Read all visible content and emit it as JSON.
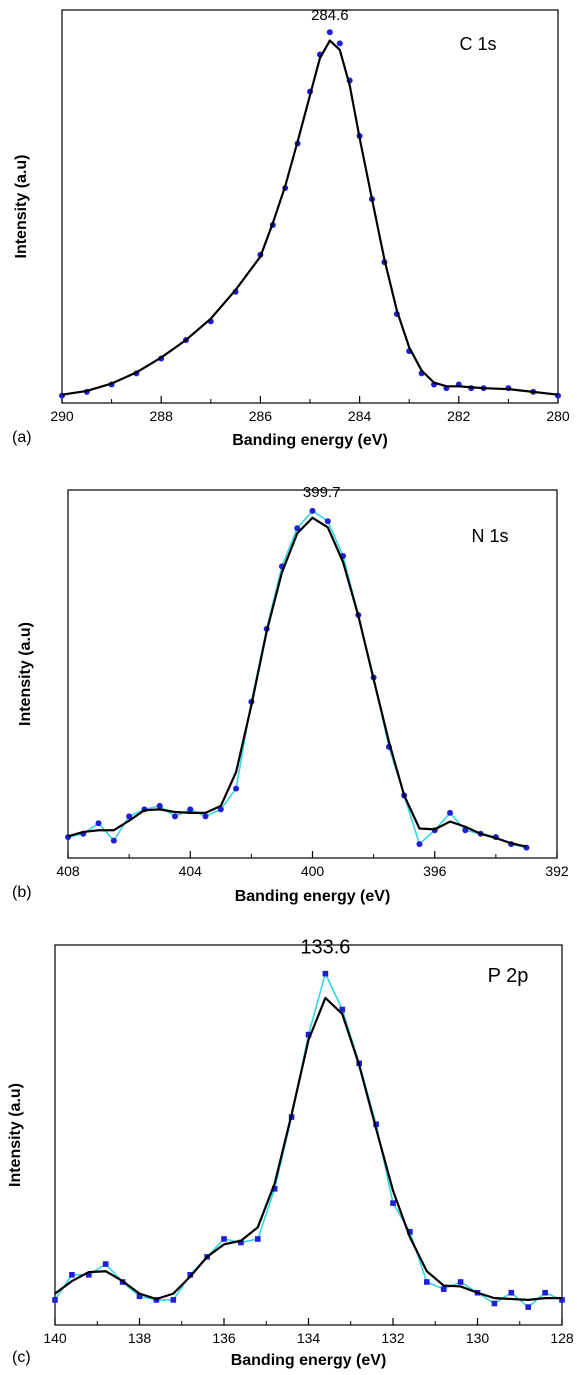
{
  "chart_data": [
    {
      "type": "scatter",
      "panel_tag": "(a)",
      "title": "C 1s",
      "peak_label": "284.6",
      "peak_x": 284.6,
      "xlabel": "Banding energy (eV)",
      "ylabel": "Intensity (a.u)",
      "xlim": [
        290,
        280
      ],
      "ylim": [
        0,
        1.06
      ],
      "x_ticks": [
        "290",
        "288",
        "286",
        "284",
        "282",
        "280"
      ],
      "x_tick_values": [
        290,
        288,
        286,
        284,
        282,
        280
      ],
      "grid": false,
      "colors": {
        "points": "#1f1fd6",
        "raw_line": "#ffffff",
        "fit": "#000000"
      },
      "marker": "circle",
      "series": [
        {
          "x": [
            290,
            289.5,
            289,
            288.5,
            288,
            287.5,
            287,
            286.5,
            286,
            285.75,
            285.5,
            285.25,
            285,
            284.8,
            284.6,
            284.4,
            284.2,
            284,
            283.75,
            283.5,
            283.25,
            283,
            282.75,
            282.5,
            282.25,
            282,
            281.75,
            281.5,
            281,
            280.5,
            280
          ],
          "y": [
            0.02,
            0.03,
            0.05,
            0.08,
            0.12,
            0.17,
            0.22,
            0.3,
            0.4,
            0.48,
            0.58,
            0.7,
            0.84,
            0.94,
            1.0,
            0.97,
            0.87,
            0.72,
            0.55,
            0.38,
            0.24,
            0.14,
            0.08,
            0.05,
            0.04,
            0.05,
            0.04,
            0.04,
            0.04,
            0.03,
            0.02
          ]
        }
      ]
    },
    {
      "type": "scatter",
      "panel_tag": "(b)",
      "title": "N 1s",
      "peak_label": "399.7",
      "peak_x": 399.7,
      "xlabel": "Banding energy (eV)",
      "ylabel": "Intensity (a.u)",
      "xlim": [
        408,
        392
      ],
      "ylim": [
        0,
        1.06
      ],
      "x_ticks": [
        "408",
        "404",
        "400",
        "396",
        "392"
      ],
      "x_tick_values": [
        408,
        404,
        400,
        396,
        392
      ],
      "grid": false,
      "colors": {
        "points": "#1f1fd6",
        "raw_line": "#33d6e6",
        "fit": "#000000"
      },
      "marker": "circle",
      "series": [
        {
          "x": [
            408,
            407.5,
            407,
            406.5,
            406,
            405.5,
            405,
            404.5,
            404,
            403.5,
            403,
            402.5,
            402,
            401.5,
            401,
            400.5,
            400,
            399.5,
            399,
            398.5,
            398,
            397.5,
            397,
            396.5,
            396,
            395.5,
            395,
            394.5,
            394,
            393.5,
            393
          ],
          "y": [
            0.06,
            0.07,
            0.1,
            0.05,
            0.12,
            0.14,
            0.15,
            0.12,
            0.14,
            0.12,
            0.14,
            0.2,
            0.45,
            0.66,
            0.84,
            0.95,
            1.0,
            0.97,
            0.87,
            0.7,
            0.52,
            0.32,
            0.18,
            0.04,
            0.08,
            0.13,
            0.08,
            0.07,
            0.06,
            0.04,
            0.03
          ]
        }
      ]
    },
    {
      "type": "scatter",
      "panel_tag": "(c)",
      "title": "P 2p",
      "peak_label": "133.6",
      "peak_x": 133.6,
      "xlabel": "Banding energy (eV)",
      "ylabel": "Intensity (a.u)",
      "xlim": [
        140,
        128
      ],
      "ylim": [
        0,
        1.06
      ],
      "x_ticks": [
        "140",
        "138",
        "136",
        "134",
        "132",
        "130",
        "128"
      ],
      "x_tick_values": [
        140,
        138,
        136,
        134,
        132,
        130,
        128
      ],
      "grid": false,
      "colors": {
        "points": "#1f1fd6",
        "raw_line": "#33d6e6",
        "fit": "#000000"
      },
      "marker": "square",
      "series": [
        {
          "x": [
            140,
            139.6,
            139.2,
            138.8,
            138.4,
            138,
            137.6,
            137.2,
            136.8,
            136.4,
            136,
            135.6,
            135.2,
            134.8,
            134.4,
            134,
            133.6,
            133.2,
            132.8,
            132.4,
            132,
            131.6,
            131.2,
            130.8,
            130.4,
            130,
            129.6,
            129.2,
            128.8,
            128.4,
            128
          ],
          "y": [
            0.07,
            0.14,
            0.14,
            0.17,
            0.12,
            0.08,
            0.07,
            0.07,
            0.14,
            0.19,
            0.24,
            0.23,
            0.24,
            0.38,
            0.58,
            0.81,
            0.98,
            0.88,
            0.73,
            0.56,
            0.34,
            0.26,
            0.12,
            0.1,
            0.12,
            0.09,
            0.06,
            0.09,
            0.05,
            0.09,
            0.07
          ]
        }
      ]
    }
  ]
}
